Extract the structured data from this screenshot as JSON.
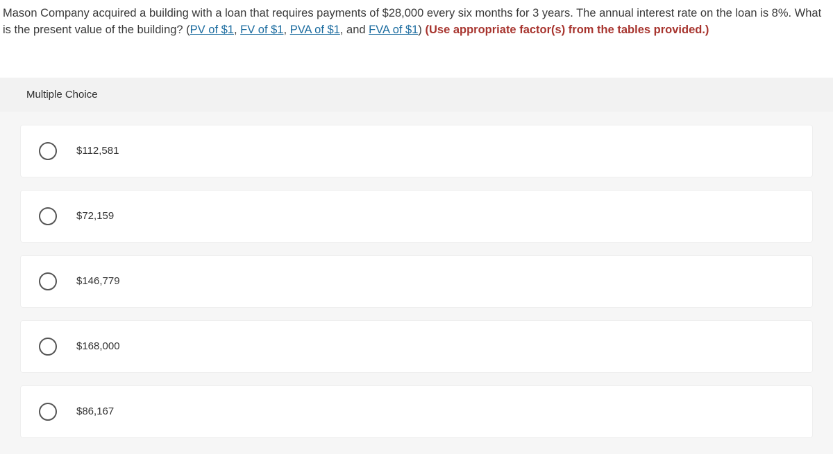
{
  "question": {
    "pre": "Mason Company acquired a building with a loan that requires payments of $28,000 every six months for 3 years. The annual interest rate on the loan is 8%. What is the present value of the building? (",
    "link1": "PV of $1",
    "sep1": ", ",
    "link2": "FV of $1",
    "sep2": ", ",
    "link3": "PVA of $1",
    "sep3": ", and ",
    "link4": "FVA of $1",
    "post_links": ") ",
    "bold": "(Use appropriate factor(s) from the tables provided.)"
  },
  "section_label": "Multiple Choice",
  "choices": [
    {
      "label": "$112,581"
    },
    {
      "label": "$72,159"
    },
    {
      "label": "$146,779"
    },
    {
      "label": "$168,000"
    },
    {
      "label": "$86,167"
    }
  ],
  "colors": {
    "link": "#1a6b9f",
    "bold_red": "#a7342e",
    "header_bg": "#f2f2f2",
    "choices_bg": "#f6f6f6",
    "choice_bg": "#ffffff",
    "radio_border": "#555"
  }
}
